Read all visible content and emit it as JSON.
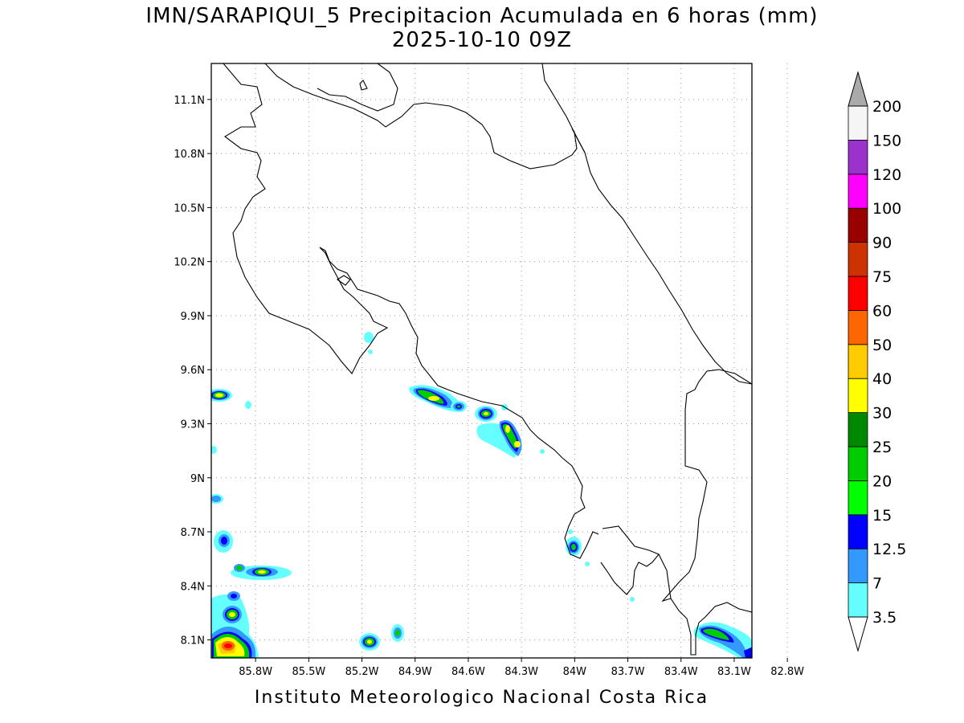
{
  "title_line1": "IMN/SARAPIQUI_5 Precipitacion Acumulada en 6 horas (mm)",
  "title_line2": "2025-10-10 09Z",
  "footer": "Instituto Meteorologico Nacional Costa Rica",
  "map": {
    "lon_range": [
      -86.05,
      -83.0
    ],
    "lat_range": [
      8.0,
      11.3
    ],
    "lat_ticks": [
      {
        "value": 11.1,
        "label": "11.1N"
      },
      {
        "value": 10.8,
        "label": "10.8N"
      },
      {
        "value": 10.5,
        "label": "10.5N"
      },
      {
        "value": 10.2,
        "label": "10.2N"
      },
      {
        "value": 9.9,
        "label": "9.9N"
      },
      {
        "value": 9.6,
        "label": "9.6N"
      },
      {
        "value": 9.3,
        "label": "9.3N"
      },
      {
        "value": 9.0,
        "label": "9N"
      },
      {
        "value": 8.7,
        "label": "8.7N"
      },
      {
        "value": 8.4,
        "label": "8.4N"
      },
      {
        "value": 8.1,
        "label": "8.1N"
      }
    ],
    "lon_ticks": [
      {
        "value": -85.8,
        "label": "85.8W"
      },
      {
        "value": -85.5,
        "label": "85.5W"
      },
      {
        "value": -85.2,
        "label": "85.2W"
      },
      {
        "value": -84.9,
        "label": "84.9W"
      },
      {
        "value": -84.6,
        "label": "84.6W"
      },
      {
        "value": -84.3,
        "label": "84.3W"
      },
      {
        "value": -84.0,
        "label": "84W"
      },
      {
        "value": -83.7,
        "label": "83.7W"
      },
      {
        "value": -83.4,
        "label": "83.4W"
      },
      {
        "value": -83.1,
        "label": "83.1W"
      },
      {
        "value": -82.8,
        "label": "82.8W"
      }
    ],
    "grid": true
  },
  "colorbar": {
    "levels": [
      {
        "label": "3.5",
        "color": "#66ffff"
      },
      {
        "label": "7",
        "color": "#3399ff"
      },
      {
        "label": "12.5",
        "color": "#0000ff"
      },
      {
        "label": "15",
        "color": "#00ff00"
      },
      {
        "label": "20",
        "color": "#00cc00"
      },
      {
        "label": "25",
        "color": "#008800"
      },
      {
        "label": "30",
        "color": "#ffff00"
      },
      {
        "label": "40",
        "color": "#ffcc00"
      },
      {
        "label": "50",
        "color": "#ff6600"
      },
      {
        "label": "60",
        "color": "#ff0000"
      },
      {
        "label": "75",
        "color": "#cc3300"
      },
      {
        "label": "90",
        "color": "#990000"
      },
      {
        "label": "100",
        "color": "#ff00ff"
      },
      {
        "label": "120",
        "color": "#9933cc"
      },
      {
        "label": "150",
        "color": "#f5f5f5"
      },
      {
        "label": "200",
        "color": "#aaaaaa"
      }
    ]
  }
}
